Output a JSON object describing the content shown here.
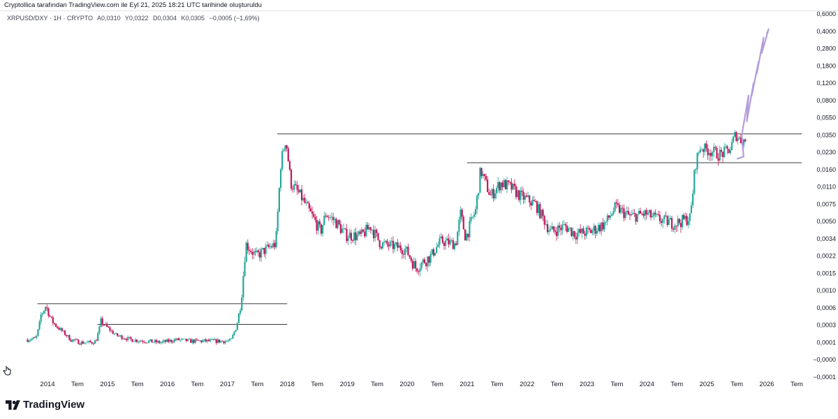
{
  "header": {
    "caption": "Cryptollica tarafından TradingView.com ile Eyl 21, 2025 18:21 UTC tarihinde oluşturuldu"
  },
  "legend": {
    "symbol": "XRPUSD/DXY · 1H · CRYPTO",
    "open": "A0,0310",
    "high": "Y0,0322",
    "low": "D0,0304",
    "close": "K0,0305",
    "change": "−0,0005 (−1,69%)"
  },
  "brand": {
    "name": "TradingView",
    "logo_icon": "tradingview-logo-icon",
    "side_icon": "hand-cursor-icon"
  },
  "chart_data": {
    "type": "candlestick",
    "title": "",
    "xlabel": "",
    "ylabel": "",
    "log_scale": true,
    "grid": false,
    "colors": {
      "up": "#26a69a",
      "down": "#c2185b",
      "projection": "#b39ddb",
      "level": "#3a3a3a"
    },
    "y_ticks": [
      "0,6000",
      "0,4000",
      "0,2800",
      "0,1800",
      "0,1200",
      "0,0800",
      "0,0550",
      "0,0350",
      "0,0230",
      "0,0160",
      "0,0110",
      "0,0075",
      "0,0050",
      "0,0034",
      "0,0022",
      "0,0015",
      "0,0010",
      "0,0006",
      "0,0003",
      "0,0001",
      "−0,0000",
      "−0,0001"
    ],
    "x_ticks": [
      "2014",
      "Tem",
      "2015",
      "Tem",
      "2016",
      "Tem",
      "2017",
      "Tem",
      "2018",
      "Tem",
      "2019",
      "Tem",
      "2020",
      "Tem",
      "2021",
      "Tem",
      "2022",
      "Tem",
      "2023",
      "Tem",
      "2024",
      "Tem",
      "2025",
      "Tem",
      "2026",
      "Tem"
    ],
    "x_range": [
      "2013-09",
      "2026-09"
    ],
    "price_series": [
      [
        "2013-09",
        0.00012
      ],
      [
        "2013-11",
        0.00013
      ],
      [
        "2013-12",
        0.00045
      ],
      [
        "2014-01",
        0.00065
      ],
      [
        "2014-02",
        0.00038
      ],
      [
        "2014-04",
        0.00022
      ],
      [
        "2014-06",
        0.00012
      ],
      [
        "2014-08",
        0.0001
      ],
      [
        "2014-10",
        0.0001
      ],
      [
        "2014-11",
        0.00011
      ],
      [
        "2014-12",
        0.00035
      ],
      [
        "2015-01",
        0.00028
      ],
      [
        "2015-03",
        0.00016
      ],
      [
        "2015-06",
        0.00012
      ],
      [
        "2015-09",
        0.00011
      ],
      [
        "2015-12",
        0.0001
      ],
      [
        "2016-03",
        0.00012
      ],
      [
        "2016-06",
        0.00011
      ],
      [
        "2016-09",
        0.00011
      ],
      [
        "2016-12",
        0.00011
      ],
      [
        "2017-02",
        0.00011
      ],
      [
        "2017-03",
        0.00025
      ],
      [
        "2017-04",
        0.0007
      ],
      [
        "2017-05",
        0.003
      ],
      [
        "2017-07",
        0.0022
      ],
      [
        "2017-09",
        0.0026
      ],
      [
        "2017-11",
        0.003
      ],
      [
        "2017-12",
        0.018
      ],
      [
        "2018-01",
        0.032
      ],
      [
        "2018-02",
        0.012
      ],
      [
        "2018-04",
        0.009
      ],
      [
        "2018-06",
        0.006
      ],
      [
        "2018-08",
        0.004
      ],
      [
        "2018-09",
        0.006
      ],
      [
        "2018-11",
        0.005
      ],
      [
        "2019-01",
        0.0037
      ],
      [
        "2019-04",
        0.0036
      ],
      [
        "2019-06",
        0.0045
      ],
      [
        "2019-08",
        0.003
      ],
      [
        "2019-11",
        0.0028
      ],
      [
        "2020-01",
        0.0026
      ],
      [
        "2020-03",
        0.0017
      ],
      [
        "2020-06",
        0.0022
      ],
      [
        "2020-08",
        0.0032
      ],
      [
        "2020-11",
        0.003
      ],
      [
        "2020-12",
        0.006
      ],
      [
        "2021-01",
        0.0035
      ],
      [
        "2021-03",
        0.0065
      ],
      [
        "2021-04",
        0.016
      ],
      [
        "2021-06",
        0.009
      ],
      [
        "2021-08",
        0.012
      ],
      [
        "2021-10",
        0.011
      ],
      [
        "2021-12",
        0.009
      ],
      [
        "2022-03",
        0.0075
      ],
      [
        "2022-06",
        0.004
      ],
      [
        "2022-09",
        0.0045
      ],
      [
        "2022-11",
        0.0038
      ],
      [
        "2023-02",
        0.004
      ],
      [
        "2023-05",
        0.0048
      ],
      [
        "2023-07",
        0.007
      ],
      [
        "2023-10",
        0.0056
      ],
      [
        "2024-01",
        0.006
      ],
      [
        "2024-04",
        0.0052
      ],
      [
        "2024-07",
        0.0048
      ],
      [
        "2024-10",
        0.0055
      ],
      [
        "2024-11",
        0.018
      ],
      [
        "2024-12",
        0.026
      ],
      [
        "2025-02",
        0.024
      ],
      [
        "2025-04",
        0.022
      ],
      [
        "2025-06",
        0.025
      ],
      [
        "2025-07",
        0.036
      ],
      [
        "2025-08",
        0.031
      ],
      [
        "2025-09",
        0.0305
      ]
    ],
    "projection_series": [
      [
        "2025-07",
        0.02
      ],
      [
        "2025-08",
        0.021
      ],
      [
        "2025-08",
        0.035
      ],
      [
        "2025-09",
        0.09
      ],
      [
        "2025-09",
        0.05
      ],
      [
        "2025-10",
        0.12
      ],
      [
        "2025-10",
        0.09
      ],
      [
        "2025-11",
        0.2
      ],
      [
        "2025-11",
        0.15
      ],
      [
        "2025-12",
        0.35
      ],
      [
        "2025-12",
        0.25
      ],
      [
        "2026-01",
        0.42
      ],
      [
        "2026-01",
        0.38
      ]
    ],
    "horizontal_levels": [
      {
        "from": "2013-11",
        "to": "2018-01",
        "value": 0.00068
      },
      {
        "from": "2014-11",
        "to": "2018-01",
        "value": 0.00031
      },
      {
        "from": "2017-11",
        "to": "2026-09",
        "value": 0.036
      },
      {
        "from": "2021-01",
        "to": "2026-09",
        "value": 0.0185
      }
    ]
  }
}
